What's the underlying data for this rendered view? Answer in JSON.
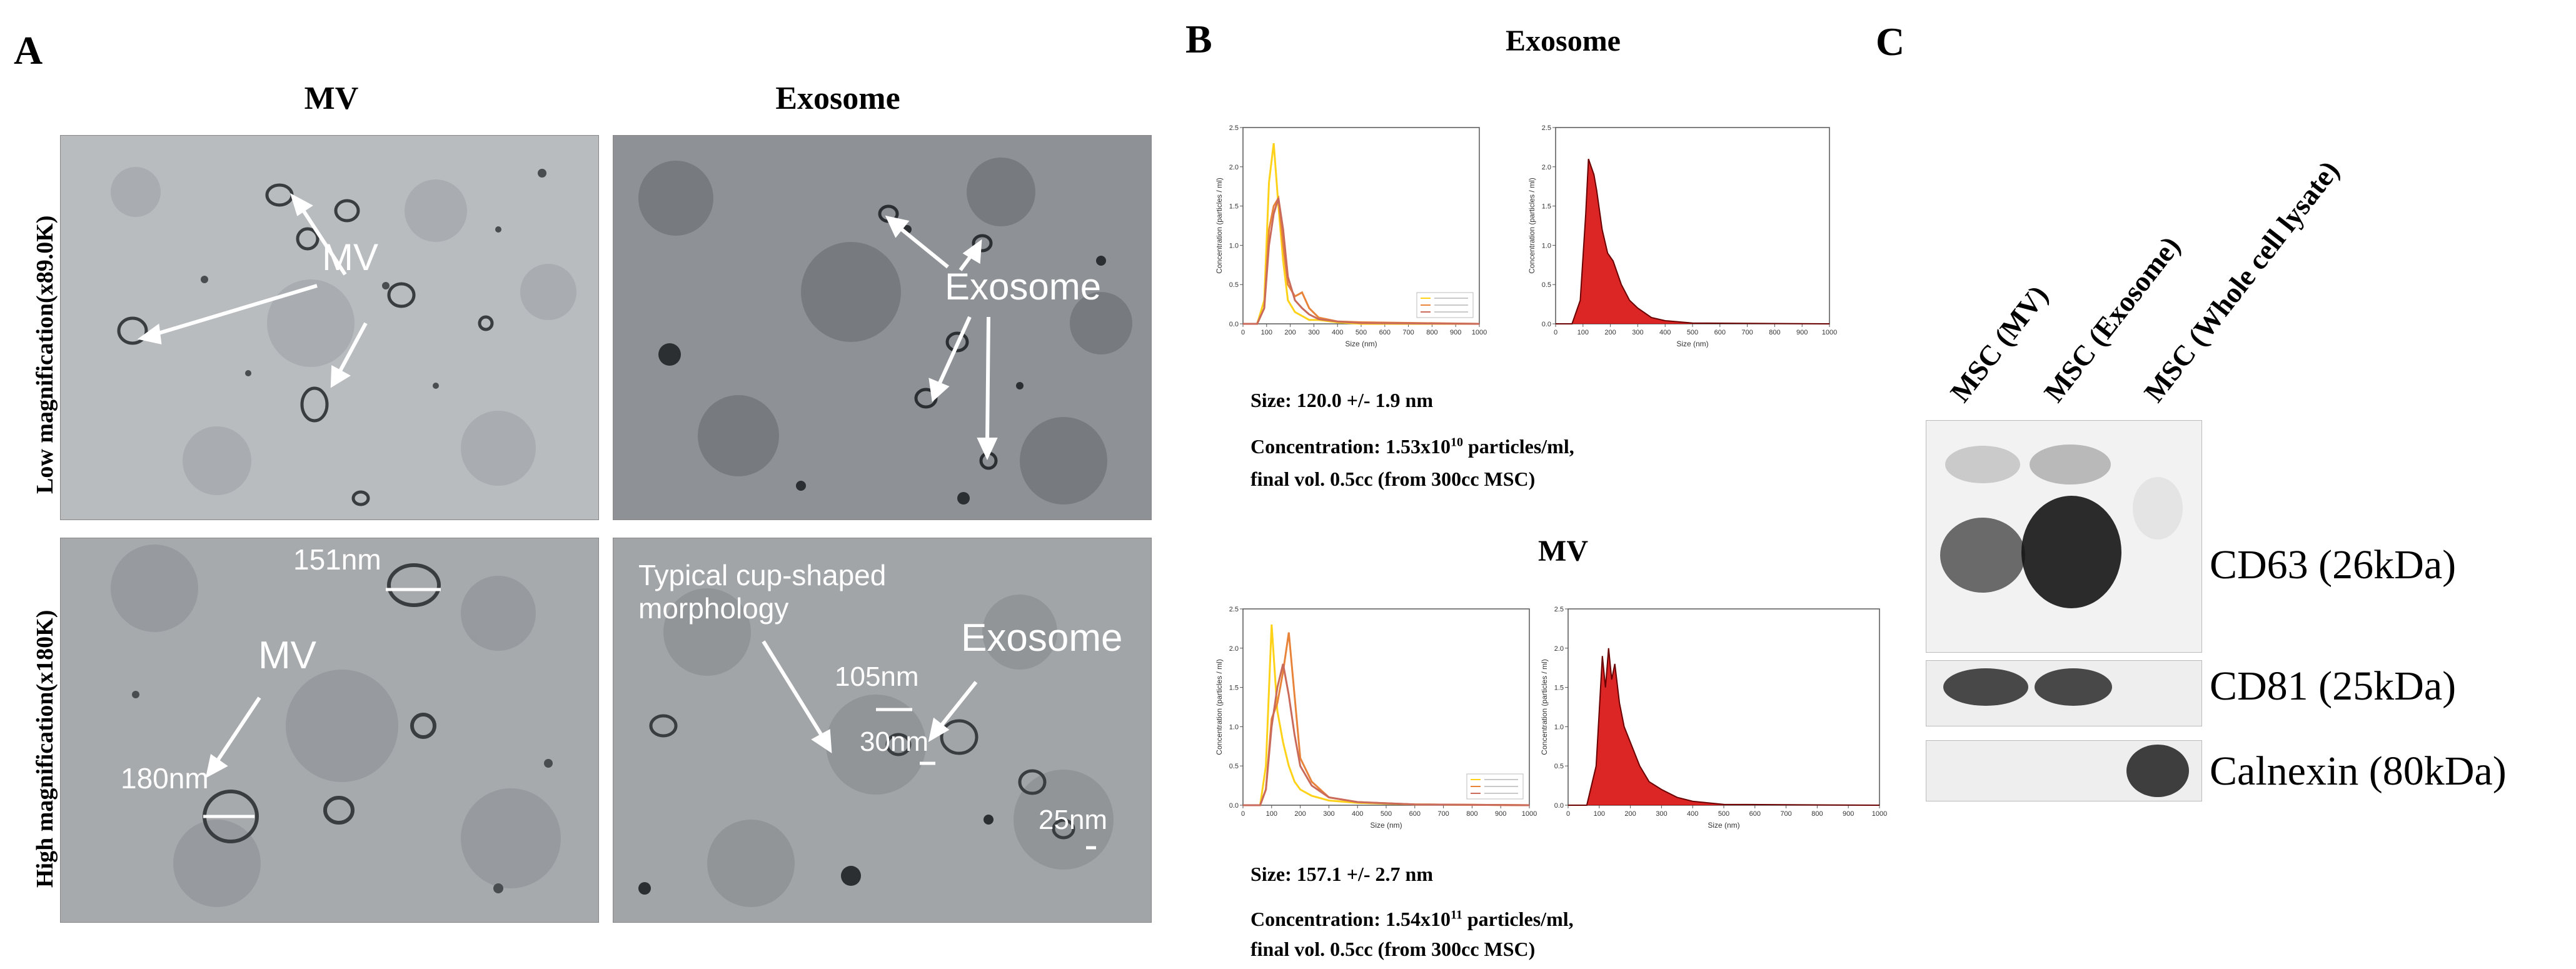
{
  "panel_a": {
    "letter": "A",
    "col_mv": "MV",
    "col_exo": "Exosome",
    "row_low": "Low magnification(x89.0K)",
    "row_high": "High magnification(x180K)",
    "low_mv_label": "MV",
    "low_exo_label": "Exosome",
    "high_mv_label": "MV",
    "high_mv_size1": "151nm",
    "high_mv_size2": "180nm",
    "high_exo_label": "Exosome",
    "high_exo_note_line1": "Typical cup-shaped",
    "high_exo_note_line2": "morphology",
    "high_exo_size1": "105nm",
    "high_exo_size2": "30nm",
    "high_exo_size3": "25nm"
  },
  "panel_b": {
    "letter": "B",
    "exo_title": "Exosome",
    "mv_title": "MV",
    "exo_size": "Size: 120.0 +/- 1.9 nm",
    "exo_conc_pre": "Concentration: 1.53x10",
    "exo_conc_exp": "10",
    "exo_conc_post": " particles/ml,",
    "exo_final": "final vol. 0.5cc (from 300cc MSC)",
    "mv_size": "Size: 157.1 +/- 2.7 nm",
    "mv_conc_pre": "Concentration: 1.54x10",
    "mv_conc_exp": "11",
    "mv_conc_post": " particles/ml,",
    "mv_final": "final vol. 0.5cc (from 300cc MSC)"
  },
  "panel_c": {
    "letter": "C",
    "lanes": [
      "MSC (MV)",
      "MSC (Exosome)",
      "MSC (Whole cell lysate)"
    ],
    "bands": [
      "CD63 (26kDa)",
      "CD81 (25kDa)",
      "Calnexin (80kDa)"
    ]
  },
  "chart_data": [
    {
      "type": "line",
      "xlabel": "Size (nm)",
      "ylabel": "Concentration (particles / ml)",
      "xlim": [
        0,
        1000
      ],
      "ylim": [
        0,
        2.5
      ],
      "legend_placement": "lower-right",
      "colors": [
        "#ffd21a",
        "#e8833a",
        "#c96a5a"
      ],
      "series": [
        {
          "x": [
            0,
            60,
            90,
            110,
            130,
            150,
            170,
            190,
            220,
            250,
            280,
            320,
            400,
            500,
            1000
          ],
          "y": [
            0,
            0,
            0.3,
            1.8,
            2.3,
            1.5,
            0.8,
            0.3,
            0.15,
            0.1,
            0.05,
            0.05,
            0.02,
            0,
            0
          ]
        },
        {
          "x": [
            0,
            60,
            90,
            110,
            130,
            150,
            170,
            190,
            220,
            250,
            280,
            320,
            400,
            500,
            1000
          ],
          "y": [
            0,
            0,
            0.2,
            1.2,
            1.5,
            1.6,
            1.0,
            0.5,
            0.35,
            0.4,
            0.2,
            0.08,
            0.03,
            0.02,
            0
          ]
        },
        {
          "x": [
            0,
            60,
            90,
            110,
            130,
            150,
            170,
            190,
            220,
            250,
            280,
            320,
            400,
            500,
            1000
          ],
          "y": [
            0,
            0,
            0.2,
            1.0,
            1.4,
            1.6,
            1.2,
            0.6,
            0.3,
            0.2,
            0.12,
            0.06,
            0.03,
            0.01,
            0
          ]
        }
      ]
    },
    {
      "type": "area",
      "xlabel": "Size (nm)",
      "ylabel": "Concentration (particles / ml)",
      "xlim": [
        0,
        1000
      ],
      "ylim": [
        0,
        2.5
      ],
      "colors": [
        "#d60000",
        "#6b0000"
      ],
      "series": [
        {
          "x": [
            0,
            60,
            90,
            110,
            120,
            130,
            140,
            150,
            170,
            190,
            210,
            240,
            270,
            300,
            350,
            400,
            500,
            1000
          ],
          "y": [
            0,
            0,
            0.3,
            1.4,
            2.1,
            2.0,
            1.9,
            1.7,
            1.2,
            0.9,
            0.8,
            0.5,
            0.3,
            0.2,
            0.08,
            0.04,
            0.01,
            0
          ]
        }
      ]
    },
    {
      "type": "line",
      "xlabel": "Size (nm)",
      "ylabel": "Concentration (particles / ml)",
      "xlim": [
        0,
        1000
      ],
      "ylim": [
        0,
        2.5
      ],
      "legend_placement": "lower-right",
      "colors": [
        "#ffd21a",
        "#e8833a",
        "#c96a5a"
      ],
      "series": [
        {
          "x": [
            0,
            60,
            80,
            100,
            120,
            140,
            160,
            180,
            200,
            240,
            300,
            400,
            600,
            1000
          ],
          "y": [
            0,
            0,
            0.5,
            2.3,
            1.2,
            0.8,
            0.5,
            0.3,
            0.2,
            0.12,
            0.06,
            0.03,
            0.01,
            0
          ]
        },
        {
          "x": [
            0,
            60,
            80,
            100,
            120,
            140,
            160,
            180,
            200,
            240,
            300,
            400,
            600,
            1000
          ],
          "y": [
            0,
            0,
            0.2,
            1.1,
            1.3,
            1.7,
            2.2,
            1.4,
            0.6,
            0.3,
            0.1,
            0.04,
            0.01,
            0
          ]
        },
        {
          "x": [
            0,
            60,
            80,
            100,
            120,
            140,
            160,
            180,
            200,
            240,
            300,
            400,
            600,
            1000
          ],
          "y": [
            0,
            0,
            0.2,
            1.0,
            1.5,
            1.8,
            1.4,
            0.9,
            0.5,
            0.25,
            0.1,
            0.04,
            0.01,
            0
          ]
        }
      ]
    },
    {
      "type": "area",
      "xlabel": "Size (nm)",
      "ylabel": "Concentration (particles / ml)",
      "xlim": [
        0,
        1000
      ],
      "ylim": [
        0,
        2.5
      ],
      "colors": [
        "#d60000",
        "#6b0000"
      ],
      "series": [
        {
          "x": [
            0,
            60,
            90,
            110,
            120,
            130,
            140,
            150,
            165,
            180,
            200,
            230,
            260,
            300,
            350,
            400,
            500,
            1000
          ],
          "y": [
            0,
            0,
            0.5,
            1.9,
            1.5,
            2.0,
            1.6,
            1.8,
            1.3,
            1.0,
            0.8,
            0.5,
            0.3,
            0.2,
            0.1,
            0.05,
            0.01,
            0
          ]
        }
      ]
    }
  ]
}
